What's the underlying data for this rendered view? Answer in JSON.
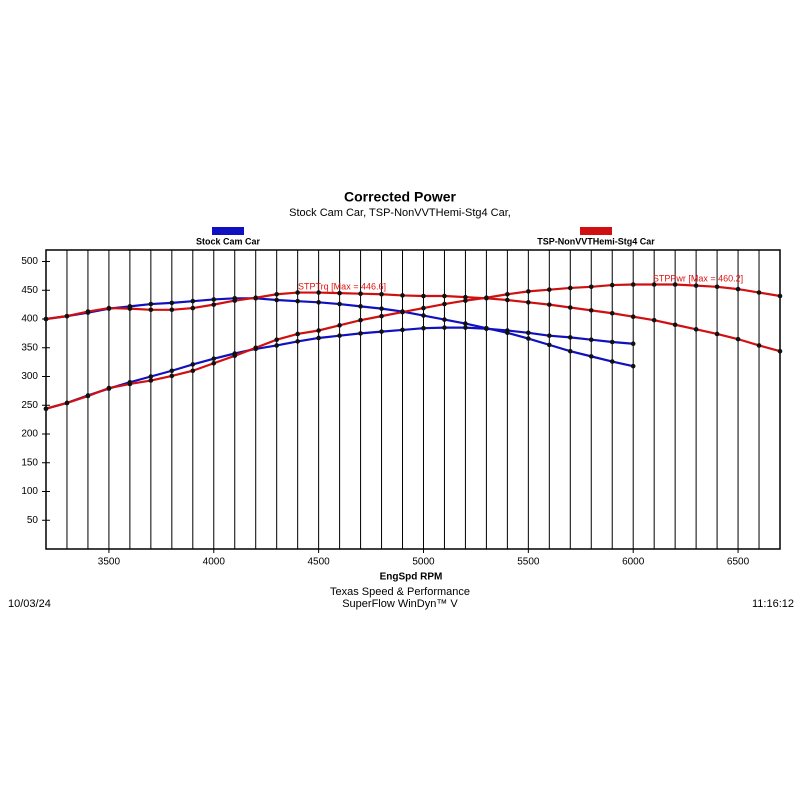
{
  "chart_data": {
    "type": "line",
    "title": "Corrected Power",
    "subtitle": "Stock Cam Car, TSP-NonVVTHemi-Stg4 Car,",
    "x_label": "EngSpd RPM",
    "x": [
      3200,
      3300,
      3400,
      3500,
      3600,
      3700,
      3800,
      3900,
      4000,
      4100,
      4200,
      4300,
      4400,
      4500,
      4600,
      4700,
      4800,
      4900,
      5000,
      5100,
      5200,
      5300,
      5400,
      5500,
      5600,
      5700,
      5800,
      5900,
      6000,
      6100,
      6200,
      6300,
      6400,
      6500,
      6600,
      6700
    ],
    "xlim": [
      3200,
      6700
    ],
    "xticks": [
      3500,
      4000,
      4500,
      5000,
      5500,
      6000,
      6500
    ],
    "ylim": [
      0,
      520
    ],
    "yticks": [
      50,
      100,
      150,
      200,
      250,
      300,
      350,
      400,
      450,
      500
    ],
    "grid": true,
    "series": [
      {
        "name": "Stock Cam Car",
        "color": "#1010c0",
        "torque": [
          400,
          405,
          411,
          418,
          422,
          426,
          428,
          431,
          434,
          436,
          436,
          433,
          431,
          429,
          426,
          422,
          418,
          413,
          406,
          399,
          392,
          384,
          376,
          366,
          355,
          344,
          335,
          326,
          318,
          null,
          null,
          null,
          null,
          null,
          null,
          null
        ],
        "power": [
          244,
          254,
          267,
          279,
          290,
          300,
          310,
          321,
          331,
          340,
          348,
          354,
          361,
          367,
          371,
          375,
          378,
          381,
          384,
          385,
          385,
          383,
          380,
          376,
          371,
          368,
          364,
          360,
          357,
          null,
          null,
          null,
          null,
          null,
          null,
          null
        ]
      },
      {
        "name": "TSP-NonVVTHemi-Stg4 Car",
        "color": "#d01010",
        "torque": [
          400,
          405,
          413,
          419,
          418,
          416,
          416,
          419,
          425,
          432,
          437,
          443,
          446,
          446,
          445,
          444,
          443,
          441,
          440,
          440,
          438,
          436,
          433,
          429,
          425,
          420,
          415,
          410,
          404,
          398,
          390,
          382,
          374,
          365,
          354,
          344
        ],
        "power": [
          244,
          254,
          266,
          280,
          287,
          293,
          301,
          310,
          323,
          336,
          350,
          364,
          374,
          380,
          389,
          398,
          405,
          412,
          419,
          426,
          432,
          437,
          443,
          448,
          451,
          454,
          456,
          459,
          460,
          460,
          460,
          458,
          456,
          452,
          446,
          440
        ]
      }
    ],
    "annotations": [
      "STPTrq [Max = 446.6]",
      "STPPwr [Max = 460.2]"
    ],
    "footer": {
      "date": "10/03/24",
      "company": "Texas Speed & Performance",
      "software": "SuperFlow WinDyn™ V",
      "time": "11:16:12"
    }
  }
}
